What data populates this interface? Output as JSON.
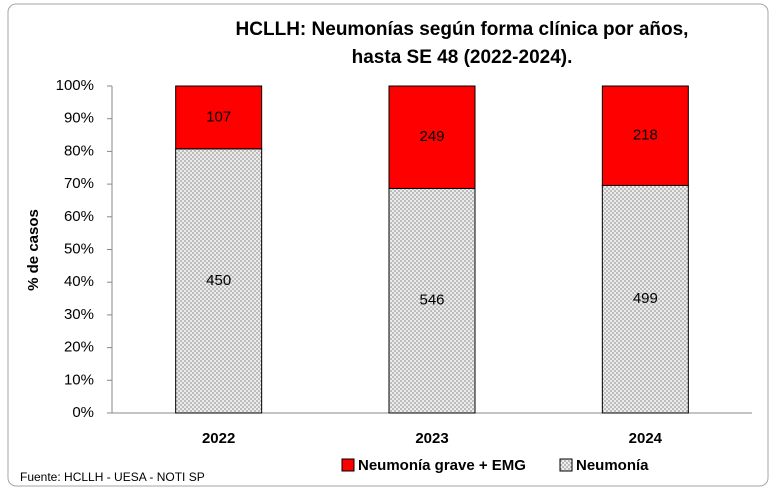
{
  "chart_data": {
    "type": "bar",
    "stacking": "percent",
    "title": [
      "HCLLH: Neumonías según forma clínica por años,",
      "hasta SE 48 (2022-2024)."
    ],
    "y_label": "% de casos",
    "source": "Fuente: HCLLH - UESA - NOTI SP",
    "categories": [
      "2022",
      "2023",
      "2024"
    ],
    "series": [
      {
        "name": "Neumonía",
        "color": "#d9d9d9",
        "values": [
          450,
          546,
          499
        ]
      },
      {
        "name": "Neumonía grave + EMG",
        "color": "#ff0000",
        "values": [
          107,
          249,
          218
        ]
      }
    ],
    "ylim": [
      0,
      100
    ],
    "yticks": [
      {
        "value": 0,
        "label": "0%"
      },
      {
        "value": 10,
        "label": "10%"
      },
      {
        "value": 20,
        "label": "20%"
      },
      {
        "value": 30,
        "label": "30%"
      },
      {
        "value": 40,
        "label": "40%"
      },
      {
        "value": 50,
        "label": "50%"
      },
      {
        "value": 60,
        "label": "60%"
      },
      {
        "value": 70,
        "label": "70%"
      },
      {
        "value": 80,
        "label": "80%"
      },
      {
        "value": 90,
        "label": "90%"
      },
      {
        "value": 100,
        "label": "100%"
      }
    ],
    "grid": false
  }
}
